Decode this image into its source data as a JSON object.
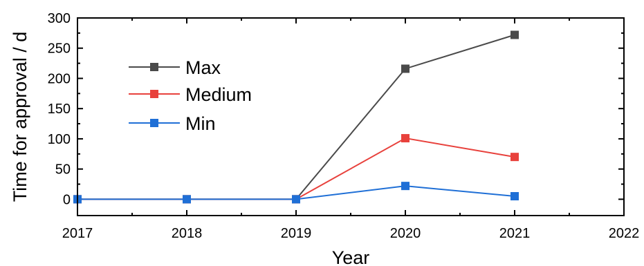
{
  "chart_data": {
    "type": "line",
    "title": "",
    "xlabel": "Year",
    "ylabel": "Time for approval / d",
    "xlim": [
      2017,
      2022
    ],
    "ylim": [
      -27,
      300
    ],
    "xticks": [
      2017,
      2018,
      2019,
      2020,
      2021,
      2022
    ],
    "yticks": [
      0,
      50,
      100,
      150,
      200,
      250,
      300
    ],
    "grid": false,
    "legend": "upper-left",
    "series": [
      {
        "name": "Max",
        "color": "#4a4a4a",
        "marker": "square",
        "x": [
          2017,
          2018,
          2019,
          2020,
          2021
        ],
        "y": [
          0,
          0,
          0,
          216,
          272
        ]
      },
      {
        "name": "Medium",
        "color": "#e8413c",
        "marker": "square",
        "x": [
          2017,
          2018,
          2019,
          2020,
          2021
        ],
        "y": [
          0,
          0,
          0,
          101,
          70
        ]
      },
      {
        "name": "Min",
        "color": "#1f6fd6",
        "marker": "square",
        "x": [
          2017,
          2018,
          2019,
          2020,
          2021
        ],
        "y": [
          0,
          0,
          0,
          22,
          5
        ]
      }
    ]
  }
}
